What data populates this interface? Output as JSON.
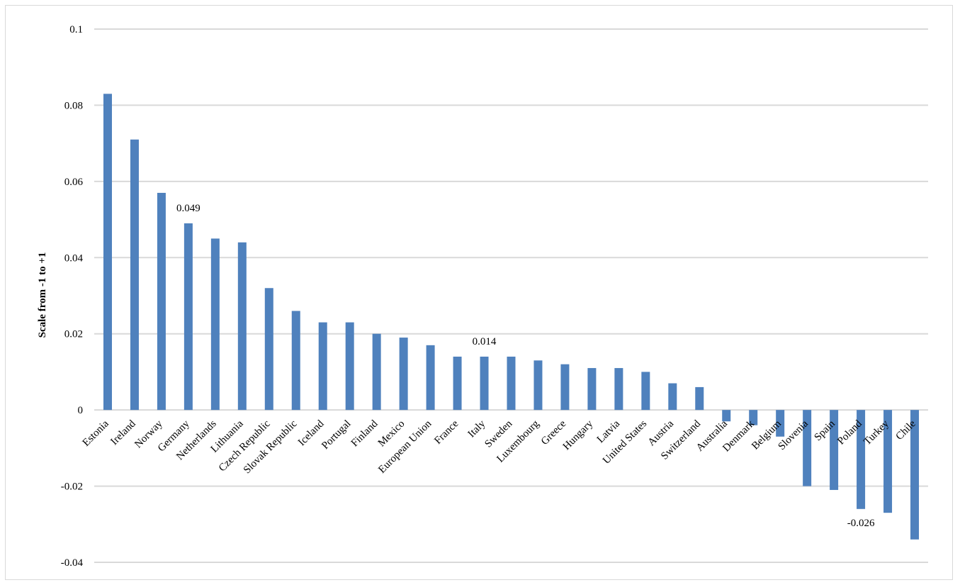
{
  "chart_data": {
    "type": "bar",
    "title": "",
    "xlabel": "",
    "ylabel": "Scale from -1 to +1",
    "ylim": [
      -0.04,
      0.1
    ],
    "yticks": [
      0.1,
      0.08,
      0.06,
      0.04,
      0.02,
      0,
      -0.02,
      -0.04
    ],
    "ytick_labels": [
      "0.1",
      "0.08",
      "0.06",
      "0.04",
      "0.02",
      "0",
      "-0.02",
      "-0.04"
    ],
    "grid": true,
    "bar_color": "#4f81bd",
    "categories": [
      "Estonia",
      "Ireland",
      "Norway",
      "Germany",
      "Netherlands",
      "Lithuania",
      "Czech Republic",
      "Slovak Republic",
      "Iceland",
      "Portugal",
      "Finland",
      "Mexico",
      "European Union",
      "France",
      "Italy",
      "Sweden",
      "Luxembourg",
      "Greece",
      "Hungary",
      "Latvia",
      "United States",
      "Austria",
      "Switzerland",
      "Australia",
      "Denmark",
      "Belgium",
      "Slovenia",
      "Spain",
      "Poland",
      "Turkey",
      "Chile"
    ],
    "values": [
      0.083,
      0.071,
      0.057,
      0.049,
      0.045,
      0.044,
      0.032,
      0.026,
      0.023,
      0.023,
      0.02,
      0.019,
      0.017,
      0.014,
      0.014,
      0.014,
      0.013,
      0.012,
      0.011,
      0.011,
      0.01,
      0.007,
      0.006,
      -0.003,
      -0.004,
      -0.007,
      -0.02,
      -0.021,
      -0.026,
      -0.027,
      -0.034
    ],
    "data_labels": [
      {
        "category": "Germany",
        "text": "0.049"
      },
      {
        "category": "Italy",
        "text": "0.014"
      },
      {
        "category": "Poland",
        "text": "-0.026"
      }
    ]
  }
}
